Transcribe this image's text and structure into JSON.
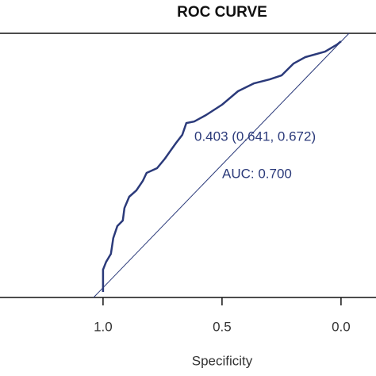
{
  "chart_data": {
    "type": "line",
    "title": "ROC CURVE",
    "x_label": "Specificity",
    "xlim": [
      1.433,
      -0.147
    ],
    "ylim": [
      -0.022,
      1.032
    ],
    "xticks": [
      {
        "value": 1,
        "label": "1.0"
      },
      0.5,
      {
        "value": 0,
        "label": "0.0"
      }
    ],
    "annotations": [
      "0.403 (0.641, 0.672)",
      "AUC: 0.700"
    ],
    "series": [
      {
        "color": "#2b3a7a",
        "x": [
          1.0,
          1.0,
          0.987,
          0.967,
          0.957,
          0.94,
          0.917,
          0.91,
          0.89,
          0.86,
          0.833,
          0.817,
          0.773,
          0.74,
          0.717,
          0.693,
          0.667,
          0.65,
          0.617,
          0.567,
          0.5,
          0.433,
          0.367,
          0.3,
          0.25,
          0.2,
          0.15,
          0.067,
          0.017,
          0
        ],
        "values": [
          0,
          0.089,
          0.12,
          0.152,
          0.215,
          0.263,
          0.285,
          0.335,
          0.38,
          0.405,
          0.443,
          0.475,
          0.494,
          0.532,
          0.563,
          0.595,
          0.627,
          0.674,
          0.68,
          0.706,
          0.747,
          0.801,
          0.832,
          0.848,
          0.864,
          0.911,
          0.937,
          0.959,
          0.987,
          1.0
        ]
      }
    ]
  }
}
